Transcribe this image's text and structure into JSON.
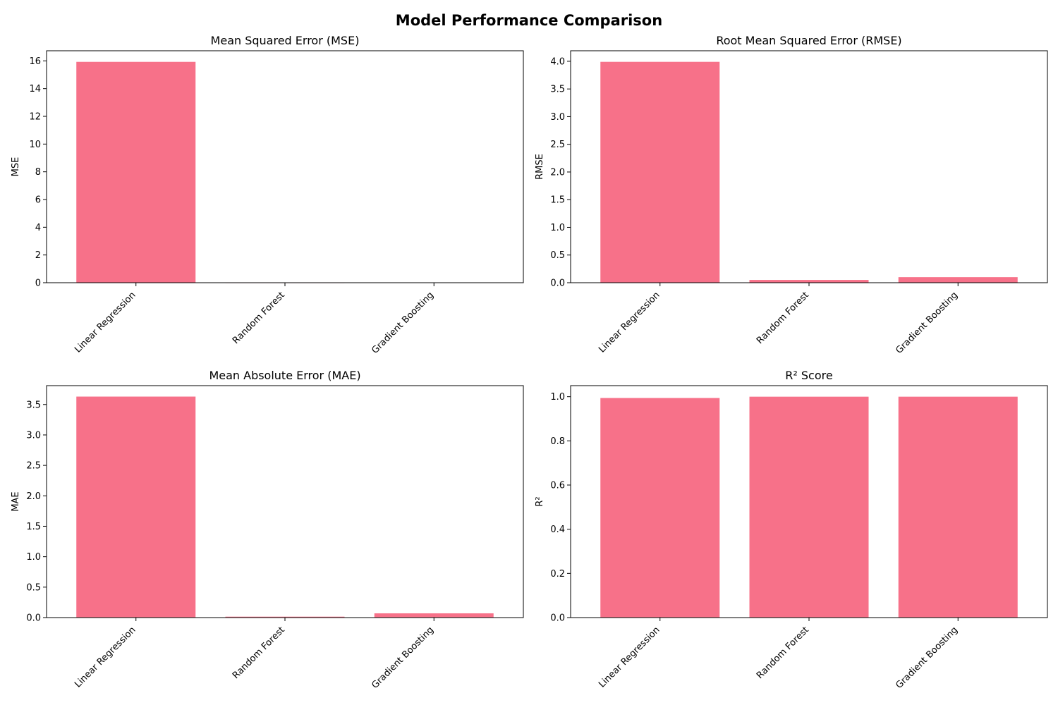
{
  "figure_title": "Model Performance Comparison",
  "colors": {
    "bar": "#f77189",
    "axes": "#000000",
    "background": "#ffffff"
  },
  "chart_data": [
    {
      "type": "bar",
      "title": "Mean Squared Error (MSE)",
      "xlabel": "",
      "ylabel": "MSE",
      "categories": [
        "Linear Regression",
        "Random Forest",
        "Gradient Boosting"
      ],
      "values": [
        15.93,
        0.003,
        0.01
      ],
      "ylim": [
        0,
        16.73
      ],
      "yticks": [
        0,
        2,
        4,
        6,
        8,
        10,
        12,
        14,
        16
      ],
      "ytick_labels": [
        "0",
        "2",
        "4",
        "6",
        "8",
        "10",
        "12",
        "14",
        "16"
      ],
      "grid": false
    },
    {
      "type": "bar",
      "title": "Root Mean Squared Error (RMSE)",
      "xlabel": "",
      "ylabel": "RMSE",
      "categories": [
        "Linear Regression",
        "Random Forest",
        "Gradient Boosting"
      ],
      "values": [
        3.99,
        0.05,
        0.1
      ],
      "ylim": [
        0,
        4.19
      ],
      "yticks": [
        0,
        0.5,
        1.0,
        1.5,
        2.0,
        2.5,
        3.0,
        3.5,
        4.0
      ],
      "ytick_labels": [
        "0.0",
        "0.5",
        "1.0",
        "1.5",
        "2.0",
        "2.5",
        "3.0",
        "3.5",
        "4.0"
      ],
      "grid": false
    },
    {
      "type": "bar",
      "title": "Mean Absolute Error (MAE)",
      "xlabel": "",
      "ylabel": "MAE",
      "categories": [
        "Linear Regression",
        "Random Forest",
        "Gradient Boosting"
      ],
      "values": [
        3.63,
        0.015,
        0.07
      ],
      "ylim": [
        0,
        3.81
      ],
      "yticks": [
        0,
        0.5,
        1.0,
        1.5,
        2.0,
        2.5,
        3.0,
        3.5
      ],
      "ytick_labels": [
        "0.0",
        "0.5",
        "1.0",
        "1.5",
        "2.0",
        "2.5",
        "3.0",
        "3.5"
      ],
      "grid": false
    },
    {
      "type": "bar",
      "title": "R² Score",
      "xlabel": "",
      "ylabel": "R²",
      "categories": [
        "Linear Regression",
        "Random Forest",
        "Gradient Boosting"
      ],
      "values": [
        0.994,
        1.0,
        1.0
      ],
      "ylim": [
        0,
        1.05
      ],
      "yticks": [
        0,
        0.2,
        0.4,
        0.6,
        0.8,
        1.0
      ],
      "ytick_labels": [
        "0.0",
        "0.2",
        "0.4",
        "0.6",
        "0.8",
        "1.0"
      ],
      "grid": false
    }
  ]
}
